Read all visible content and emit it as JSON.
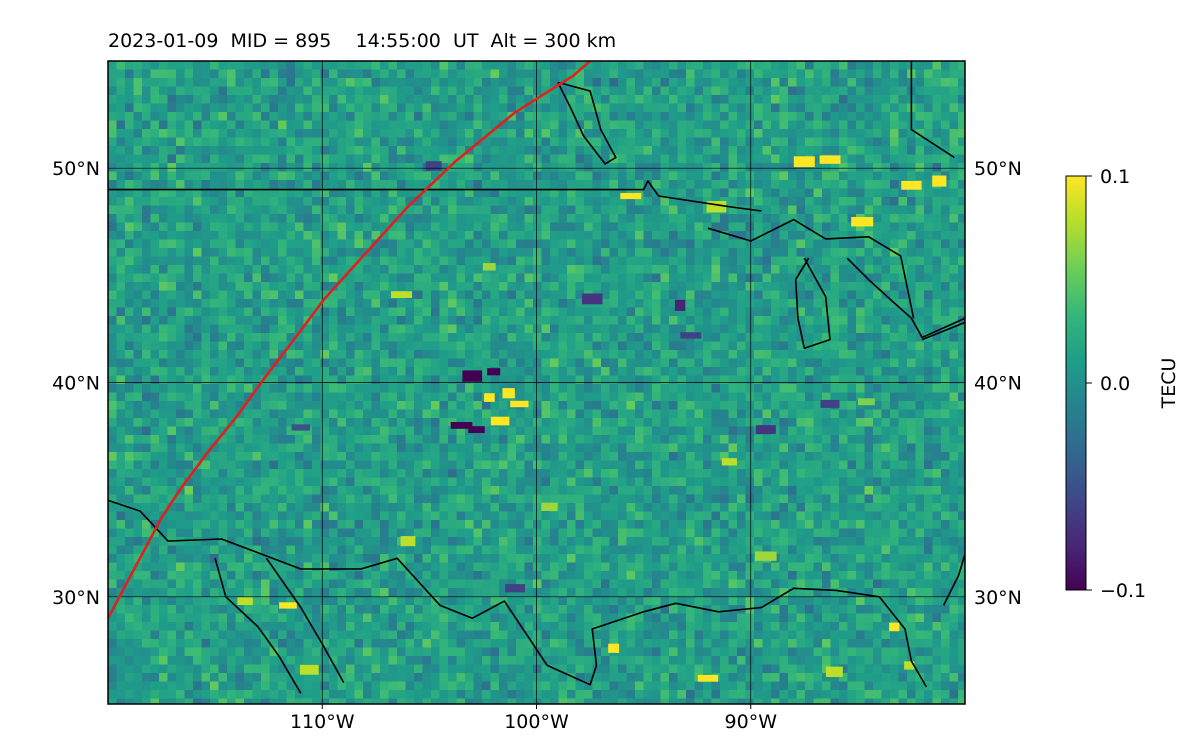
{
  "title": "2023-01-09  MID = 895    14:55:00  UT  Alt = 300 km",
  "map": {
    "lon_range": [
      -120,
      -80
    ],
    "lat_range": [
      25,
      55
    ],
    "lon_ticks": [
      {
        "value": -110,
        "label": "110°W"
      },
      {
        "value": -100,
        "label": "100°W"
      },
      {
        "value": -90,
        "label": "90°W"
      }
    ],
    "lat_ticks": [
      {
        "value": 30,
        "label": "30°N"
      },
      {
        "value": 40,
        "label": "40°N"
      },
      {
        "value": 50,
        "label": "50°N"
      }
    ],
    "grid": true,
    "terminator_color": "#e0201b",
    "coastline_color": "#000000",
    "terminator": [
      [
        -120.0,
        29.0
      ],
      [
        -119.2,
        30.5
      ],
      [
        -118.4,
        32.0
      ],
      [
        -117.5,
        33.7
      ],
      [
        -116.5,
        35.2
      ],
      [
        -115.3,
        36.8
      ],
      [
        -114.0,
        38.4
      ],
      [
        -112.7,
        40.2
      ],
      [
        -111.4,
        41.9
      ],
      [
        -109.9,
        43.9
      ],
      [
        -108.0,
        46.0
      ],
      [
        -106.0,
        48.2
      ],
      [
        -103.8,
        50.3
      ],
      [
        -101.0,
        52.6
      ],
      [
        -98.3,
        54.3
      ],
      [
        -97.5,
        55.0
      ]
    ],
    "borders": [
      [
        [
          -120.0,
          49.0
        ],
        [
          -95.0,
          49.0
        ],
        [
          -94.8,
          49.4
        ],
        [
          -94.3,
          48.7
        ],
        [
          -91.0,
          48.2
        ],
        [
          -89.5,
          48.0
        ]
      ],
      [
        [
          -120.0,
          34.5
        ],
        [
          -118.5,
          34.0
        ],
        [
          -117.2,
          32.6
        ],
        [
          -114.7,
          32.7
        ],
        [
          -111.0,
          31.3
        ],
        [
          -108.2,
          31.3
        ],
        [
          -106.5,
          31.8
        ],
        [
          -104.5,
          29.6
        ],
        [
          -103.0,
          29.0
        ],
        [
          -101.5,
          29.8
        ],
        [
          -100.3,
          28.0
        ],
        [
          -99.5,
          26.8
        ],
        [
          -97.5,
          25.9
        ],
        [
          -97.2,
          26.8
        ],
        [
          -97.4,
          28.5
        ],
        [
          -95.0,
          29.3
        ],
        [
          -93.5,
          29.7
        ],
        [
          -91.5,
          29.3
        ],
        [
          -89.5,
          29.5
        ],
        [
          -88.0,
          30.4
        ],
        [
          -86.0,
          30.3
        ],
        [
          -84.0,
          30.0
        ],
        [
          -82.8,
          28.5
        ],
        [
          -82.5,
          27.0
        ],
        [
          -81.8,
          25.8
        ]
      ],
      [
        [
          -112.6,
          31.8
        ],
        [
          -111.0,
          29.5
        ],
        [
          -110.0,
          27.8
        ],
        [
          -109.0,
          26.0
        ]
      ],
      [
        [
          -115.0,
          31.8
        ],
        [
          -114.5,
          30.0
        ],
        [
          -113.0,
          28.6
        ],
        [
          -112.0,
          27.2
        ],
        [
          -111.0,
          25.5
        ]
      ],
      [
        [
          -92.0,
          47.2
        ],
        [
          -90.0,
          46.6
        ],
        [
          -88.0,
          47.6
        ],
        [
          -86.5,
          46.7
        ],
        [
          -84.5,
          46.8
        ],
        [
          -83.0,
          45.9
        ],
        [
          -82.4,
          43.0
        ]
      ],
      [
        [
          -87.5,
          45.8
        ],
        [
          -86.5,
          44.0
        ],
        [
          -86.3,
          42.0
        ],
        [
          -87.5,
          41.6
        ],
        [
          -87.8,
          43.0
        ],
        [
          -87.9,
          44.8
        ],
        [
          -87.3,
          45.8
        ]
      ],
      [
        [
          -85.5,
          45.8
        ],
        [
          -84.5,
          44.8
        ],
        [
          -83.4,
          43.8
        ],
        [
          -82.5,
          43.0
        ],
        [
          -82.0,
          42.1
        ],
        [
          -80.0,
          43.0
        ]
      ],
      [
        [
          -99.0,
          54.0
        ],
        [
          -97.5,
          53.6
        ],
        [
          -97.0,
          51.8
        ],
        [
          -96.3,
          50.5
        ],
        [
          -96.8,
          50.2
        ],
        [
          -97.8,
          51.5
        ],
        [
          -98.4,
          52.8
        ],
        [
          -99.0,
          54.0
        ]
      ],
      [
        [
          -82.5,
          55.0
        ],
        [
          -82.5,
          51.8
        ],
        [
          -80.5,
          50.5
        ]
      ],
      [
        [
          -82.0,
          42.0
        ],
        [
          -80.5,
          42.6
        ],
        [
          -80.0,
          42.8
        ]
      ],
      [
        [
          -81.0,
          29.6
        ],
        [
          -80.3,
          31.0
        ],
        [
          -80.0,
          32.0
        ]
      ]
    ],
    "anomalies": [
      {
        "lon": -102.2,
        "lat": 39.3,
        "value": 0.1
      },
      {
        "lon": -101.3,
        "lat": 39.5,
        "value": 0.1
      },
      {
        "lon": -101.7,
        "lat": 38.2,
        "value": 0.1
      },
      {
        "lon": -100.8,
        "lat": 39.0,
        "value": 0.1
      },
      {
        "lon": -103.5,
        "lat": 38.0,
        "value": -0.1
      },
      {
        "lon": -102.8,
        "lat": 37.8,
        "value": -0.1
      },
      {
        "lon": -102.0,
        "lat": 40.5,
        "value": -0.1
      },
      {
        "lon": -103.0,
        "lat": 40.3,
        "value": -0.1
      },
      {
        "lon": -87.5,
        "lat": 50.3,
        "value": 0.1
      },
      {
        "lon": -86.3,
        "lat": 50.4,
        "value": 0.1
      },
      {
        "lon": -82.5,
        "lat": 49.2,
        "value": 0.1
      },
      {
        "lon": -81.2,
        "lat": 49.4,
        "value": 0.1
      },
      {
        "lon": -84.8,
        "lat": 47.5,
        "value": 0.1
      },
      {
        "lon": -91.0,
        "lat": 36.3,
        "value": 0.08
      },
      {
        "lon": -96.4,
        "lat": 27.6,
        "value": 0.1
      },
      {
        "lon": -92.0,
        "lat": 26.2,
        "value": 0.1
      },
      {
        "lon": -110.6,
        "lat": 26.6,
        "value": 0.08
      },
      {
        "lon": -111.6,
        "lat": 29.6,
        "value": 0.1
      },
      {
        "lon": -113.6,
        "lat": 29.8,
        "value": 0.08
      },
      {
        "lon": -83.3,
        "lat": 28.6,
        "value": 0.1
      },
      {
        "lon": -82.6,
        "lat": 26.8,
        "value": 0.08
      },
      {
        "lon": -86.1,
        "lat": 26.5,
        "value": 0.08
      },
      {
        "lon": -84.6,
        "lat": 39.1,
        "value": 0.06
      },
      {
        "lon": -89.3,
        "lat": 31.9,
        "value": 0.07
      },
      {
        "lon": -102.2,
        "lat": 45.4,
        "value": 0.07
      },
      {
        "lon": -106.3,
        "lat": 44.1,
        "value": 0.08
      },
      {
        "lon": -95.6,
        "lat": 48.7,
        "value": 0.1
      },
      {
        "lon": -91.6,
        "lat": 48.2,
        "value": 0.08
      },
      {
        "lon": -99.4,
        "lat": 34.2,
        "value": 0.07
      },
      {
        "lon": -106.0,
        "lat": 32.6,
        "value": 0.08
      },
      {
        "lon": -93.3,
        "lat": 43.6,
        "value": -0.08
      },
      {
        "lon": -101.0,
        "lat": 30.4,
        "value": -0.06
      },
      {
        "lon": -89.3,
        "lat": 37.8,
        "value": -0.07
      },
      {
        "lon": -92.8,
        "lat": 42.2,
        "value": -0.06
      },
      {
        "lon": -97.4,
        "lat": 43.9,
        "value": -0.07
      },
      {
        "lon": -86.3,
        "lat": 39.0,
        "value": -0.06
      },
      {
        "lon": -104.8,
        "lat": 50.1,
        "value": -0.06
      },
      {
        "lon": -111.0,
        "lat": 37.9,
        "value": -0.05
      }
    ]
  },
  "colorbar": {
    "label": "TECU",
    "min": -0.1,
    "max": 0.1,
    "ticks": [
      {
        "value": 0.1,
        "label": "0.1"
      },
      {
        "value": 0.0,
        "label": "0.0"
      },
      {
        "value": -0.1,
        "label": "−0.1"
      }
    ],
    "colormap": [
      "#440154",
      "#482878",
      "#3e4989",
      "#31688e",
      "#26828e",
      "#1f9e89",
      "#35b779",
      "#6ece58",
      "#b5de2b",
      "#fde725"
    ]
  }
}
